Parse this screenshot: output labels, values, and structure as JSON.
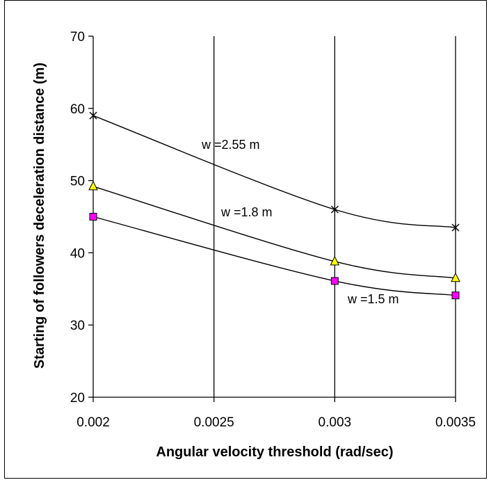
{
  "chart_data": {
    "type": "line",
    "title": "",
    "xlabel": "Angular velocity threshold (rad/sec)",
    "ylabel": "Starting of followers deceleration distance  (m)",
    "xlim": [
      0.002,
      0.0035
    ],
    "ylim": [
      20,
      70
    ],
    "x_ticks": [
      0.002,
      0.0025,
      0.003,
      0.0035
    ],
    "x_tick_labels": [
      "0.002",
      "0.0025",
      "0.003",
      "0.0035"
    ],
    "y_ticks": [
      20,
      30,
      40,
      50,
      60,
      70
    ],
    "y_tick_labels": [
      "20",
      "30",
      "40",
      "50",
      "60",
      "70"
    ],
    "grid": "vertical",
    "legend": "none",
    "x": [
      0.002,
      0.003,
      0.0035
    ],
    "series": [
      {
        "name": "w=2.55 m",
        "label": "w =2.55 m",
        "values": [
          59,
          46,
          43.5
        ],
        "marker": "star",
        "marker_color": "#000000",
        "line_color": "#000000"
      },
      {
        "name": "w=1.8 m",
        "label": "w =1.8 m",
        "values": [
          49.2,
          38.8,
          36.5
        ],
        "marker": "triangle",
        "marker_color": "#ffff00",
        "line_color": "#000000"
      },
      {
        "name": "w=1.5 m",
        "label": "w =1.5 m",
        "values": [
          45,
          36.1,
          34.1
        ],
        "marker": "square",
        "marker_color": "#ff00ff",
        "line_color": "#000000"
      }
    ]
  }
}
